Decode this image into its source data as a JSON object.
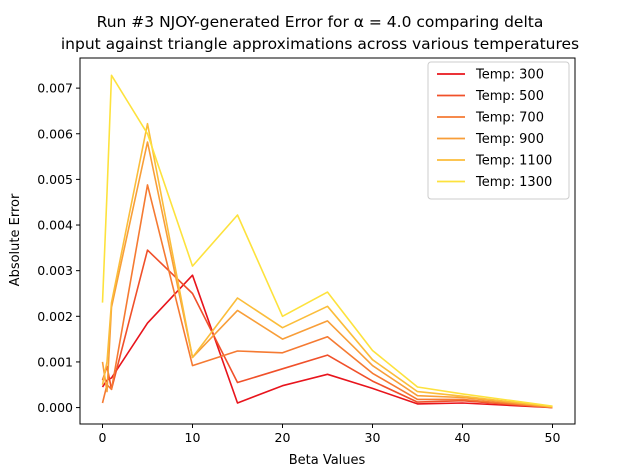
{
  "chart_data": {
    "type": "line",
    "title_line1": "Run #3 NJOY-generated Error for α = 4.0 comparing delta",
    "title_line2": "input against triangle approximations across various temperatures",
    "xlabel": "Beta Values",
    "ylabel": "Absolute Error",
    "xlim": [
      -2.5,
      52.5
    ],
    "ylim": [
      -0.00036,
      0.00766
    ],
    "xticks": [
      0,
      10,
      20,
      30,
      40,
      50
    ],
    "xtick_labels": [
      "0",
      "10",
      "20",
      "30",
      "40",
      "50"
    ],
    "yticks": [
      0.0,
      0.001,
      0.002,
      0.003,
      0.004,
      0.005,
      0.006,
      0.007
    ],
    "ytick_labels": [
      "0.000",
      "0.001",
      "0.002",
      "0.003",
      "0.004",
      "0.005",
      "0.006",
      "0.007"
    ],
    "grid": false,
    "legend_position": "top-right",
    "x": [
      0,
      0.5,
      1,
      5,
      10,
      15,
      20,
      25,
      30,
      35,
      40,
      50
    ],
    "series": [
      {
        "name": "Temp: 300",
        "color": "#e8141c",
        "values": [
          0.00045,
          0.0006,
          0.00065,
          0.00185,
          0.0029,
          0.0001,
          0.00048,
          0.00073,
          0.00042,
          8e-05,
          0.0001,
          0.0
        ]
      },
      {
        "name": "Temp: 500",
        "color": "#f0502a",
        "values": [
          0.0006,
          0.0009,
          0.0004,
          0.00345,
          0.0025,
          0.00055,
          0.00085,
          0.00115,
          0.00058,
          0.00012,
          0.00015,
          0.0
        ]
      },
      {
        "name": "Temp: 700",
        "color": "#f57a32",
        "values": [
          0.0001,
          0.0005,
          0.0004,
          0.00488,
          0.00092,
          0.00124,
          0.0012,
          0.00155,
          0.00075,
          0.00018,
          0.00018,
          0.0
        ]
      },
      {
        "name": "Temp: 900",
        "color": "#f89e38",
        "values": [
          0.001,
          0.00035,
          0.0022,
          0.00582,
          0.0011,
          0.00213,
          0.0015,
          0.0019,
          0.00092,
          0.00026,
          0.00022,
          1e-05
        ]
      },
      {
        "name": "Temp: 1100",
        "color": "#fbbd3a",
        "values": [
          0.0005,
          0.001,
          0.0023,
          0.00622,
          0.0011,
          0.0024,
          0.00175,
          0.00222,
          0.00105,
          0.00035,
          0.00025,
          2e-05
        ]
      },
      {
        "name": "Temp: 1300",
        "color": "#fde23d",
        "values": [
          0.0023,
          0.0047,
          0.00728,
          0.006,
          0.0031,
          0.00422,
          0.002,
          0.00253,
          0.00125,
          0.00045,
          0.0003,
          3e-05
        ]
      }
    ]
  }
}
